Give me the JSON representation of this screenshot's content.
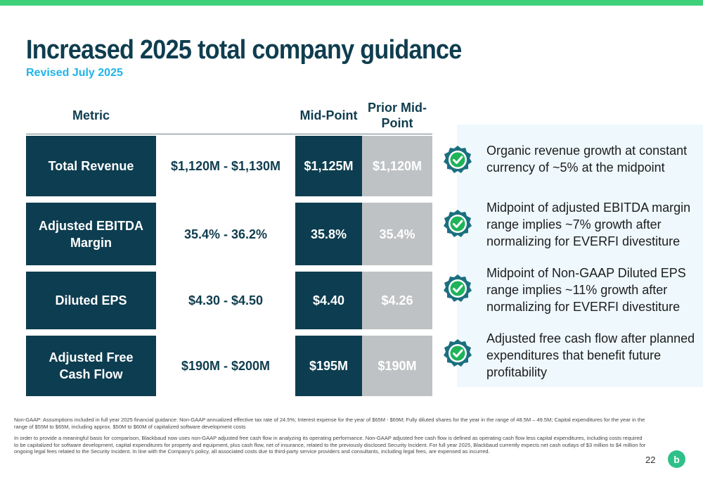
{
  "slide": {
    "title": "Increased 2025 total company guidance",
    "subtitle": "Revised July 2025",
    "page_number": "22",
    "logo_text": "b"
  },
  "table": {
    "headers": {
      "metric": "Metric",
      "mid_point": "Mid-Point",
      "prior_mid_point": "Prior Mid-Point"
    },
    "rows": [
      {
        "metric": "Total Revenue",
        "range": "$1,120M - $1,130M",
        "mid_point": "$1,125M",
        "prior_mid_point": "$1,120M"
      },
      {
        "metric": "Adjusted EBITDA Margin",
        "range": "35.4% - 36.2%",
        "mid_point": "35.8%",
        "prior_mid_point": "35.4%"
      },
      {
        "metric": "Diluted EPS",
        "range": "$4.30 - $4.50",
        "mid_point": "$4.40",
        "prior_mid_point": "$4.26"
      },
      {
        "metric": "Adjusted Free Cash Flow",
        "range": "$190M - $200M",
        "mid_point": "$195M",
        "prior_mid_point": "$190M"
      }
    ]
  },
  "notes": [
    {
      "icon": "check-badge-icon",
      "text": "Organic revenue growth at constant currency of ~5% at the midpoint"
    },
    {
      "icon": "check-badge-icon",
      "text": "Midpoint of adjusted EBITDA margin range implies ~7% growth after normalizing for EVERFI divestiture"
    },
    {
      "icon": "check-badge-icon",
      "text": "Midpoint of Non-GAAP Diluted EPS range implies ~11% growth after normalizing for EVERFI divestiture"
    },
    {
      "icon": "check-badge-icon",
      "text": "Adjusted free cash flow after planned expenditures that benefit future profitability"
    }
  ],
  "footnotes": [
    "Non-GAAP: Assumptions included in full year 2025 financial guidance: Non-GAAP annualized effective tax rate of 24.5%; Interest expense for the year of $65M - $69M; Fully diluted shares for the year in the range of 48.5M – 49.5M; Capital expenditures for the year in the range of $55M to $65M, including approx. $50M to $60M of capitalized software development costs",
    "In order to provide a meaningful basis for comparison, Blackbaud now uses non-GAAP adjusted free cash flow in analyzing its operating performance. Non-GAAP adjusted free cash flow is defined as operating cash flow less capital expenditures, including costs required to be capitalized for software development, capital expenditures for property and equipment, plus cash flow, net of insurance, related to the previously disclosed Security Incident. For full year 2025, Blackbaud currently expects net cash outlays of $3 million to $4 million for ongoing legal fees related to the Security Incident.  In line with the Company's policy, all associated costs due to third-party service providers and consultants, including legal fees, are expensed as incurred."
  ],
  "colors": {
    "accent_green": "#3fd17a",
    "navy": "#0d3d50",
    "light_blue": "#1fb4ea",
    "gray": "#bfc2c4",
    "teal_badge": "#1b6f7f"
  }
}
